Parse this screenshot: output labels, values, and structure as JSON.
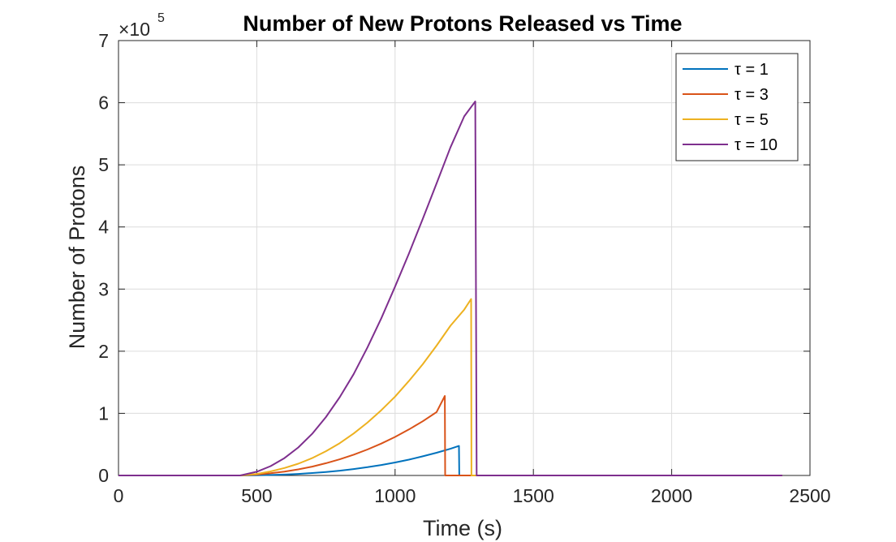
{
  "chart_data": {
    "type": "line",
    "title": "Number of New Protons Released vs Time",
    "xlabel": "Time (s)",
    "ylabel": "Number of Protons",
    "xlim": [
      0,
      2500
    ],
    "ylim": [
      0,
      700000
    ],
    "x_ticks": [
      0,
      500,
      1000,
      1500,
      2000,
      2500
    ],
    "x_tick_labels": [
      "0",
      "500",
      "1000",
      "1500",
      "2000",
      "2500"
    ],
    "y_ticks": [
      0,
      1,
      2,
      3,
      4,
      5,
      6,
      7
    ],
    "y_tick_labels": [
      "0",
      "1",
      "2",
      "3",
      "4",
      "5",
      "6",
      "7"
    ],
    "y_exponent_label": "×10",
    "y_exponent_power": "5",
    "y_scale_factor": 100000,
    "grid": true,
    "legend_position": "top-right",
    "series": [
      {
        "name": "τ = 1",
        "color": "#0072BD",
        "x": [
          0,
          440,
          500,
          550,
          600,
          650,
          700,
          750,
          800,
          850,
          900,
          950,
          1000,
          1050,
          1100,
          1150,
          1200,
          1231,
          1232,
          2400
        ],
        "y": [
          0,
          0,
          300,
          800,
          1500,
          2500,
          3900,
          5600,
          7700,
          10300,
          13300,
          16800,
          20900,
          25500,
          30800,
          36600,
          43000,
          47500,
          0,
          0
        ]
      },
      {
        "name": "τ = 3",
        "color": "#D95319",
        "x": [
          0,
          440,
          500,
          550,
          600,
          650,
          700,
          750,
          800,
          850,
          900,
          950,
          1000,
          1050,
          1100,
          1150,
          1180,
          1181,
          2400
        ],
        "y": [
          0,
          0,
          1500,
          3500,
          6300,
          9800,
          14300,
          19700,
          26000,
          33400,
          41800,
          51300,
          62000,
          74000,
          87300,
          102000,
          128000,
          0,
          0
        ]
      },
      {
        "name": "τ = 5",
        "color": "#EDB120",
        "x": [
          0,
          440,
          500,
          550,
          600,
          650,
          700,
          750,
          800,
          850,
          900,
          950,
          1000,
          1050,
          1100,
          1150,
          1200,
          1250,
          1275,
          1276,
          2400
        ],
        "y": [
          0,
          0,
          2500,
          6500,
          12000,
          19000,
          28000,
          39000,
          52000,
          67500,
          85000,
          105000,
          127000,
          152000,
          179000,
          209000,
          241000,
          267000,
          284000,
          0,
          0
        ]
      },
      {
        "name": "τ = 10",
        "color": "#7E2F8E",
        "x": [
          0,
          440,
          500,
          550,
          600,
          650,
          700,
          750,
          800,
          850,
          900,
          950,
          1000,
          1050,
          1100,
          1150,
          1200,
          1250,
          1290,
          1295,
          2400
        ],
        "y": [
          0,
          0,
          6000,
          15000,
          28000,
          45000,
          67000,
          94000,
          126000,
          163000,
          206000,
          253000,
          304000,
          357000,
          413000,
          470000,
          528000,
          578000,
          602000,
          0,
          0
        ]
      }
    ]
  }
}
